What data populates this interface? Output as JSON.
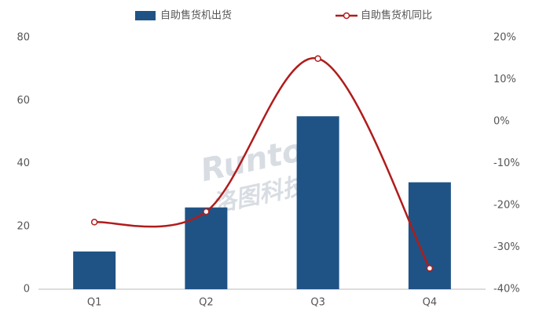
{
  "chart_data": {
    "type": "bar-line",
    "categories": [
      "Q1",
      "Q2",
      "Q3",
      "Q4"
    ],
    "series": [
      {
        "name": "自助售货机出货",
        "color": "#1f5385",
        "type": "bar",
        "values": [
          12,
          26,
          55,
          34
        ]
      },
      {
        "name": "自助售货机同比",
        "color": "#b01c1c",
        "type": "line",
        "axis": "y2",
        "values": [
          -24,
          -21.5,
          15,
          -35
        ]
      }
    ],
    "ylim": [
      0,
      80
    ],
    "yticks": [
      0,
      20,
      40,
      60,
      80
    ],
    "y2lim": [
      -40,
      20
    ],
    "y2ticks": [
      {
        "value": -40,
        "label": "-40%"
      },
      {
        "value": -30,
        "label": "-30%"
      },
      {
        "value": -20,
        "label": "-20%"
      },
      {
        "value": -10,
        "label": "-10%"
      },
      {
        "value": 0,
        "label": "0%"
      },
      {
        "value": 10,
        "label": "10%"
      },
      {
        "value": 20,
        "label": "20%"
      }
    ],
    "watermark": [
      "Runto",
      "洛图科技"
    ]
  }
}
